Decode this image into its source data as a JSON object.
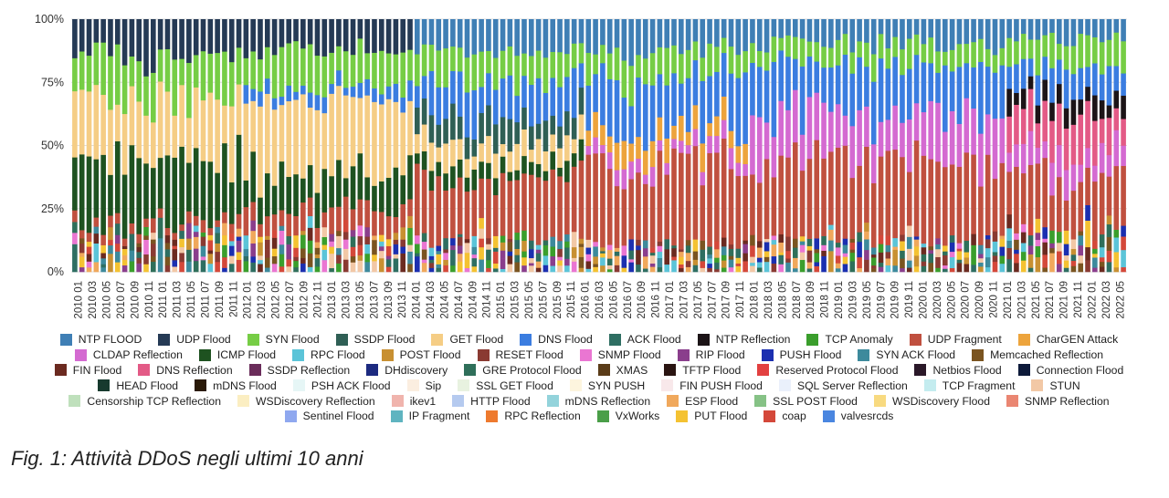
{
  "caption": "Fig. 1: Attività DDoS negli ultimi 10 anni",
  "chart_data": {
    "type": "bar",
    "stacked": true,
    "normalized_percent": true,
    "ylim": [
      0,
      100
    ],
    "y_ticks": [
      "0%",
      "25%",
      "50%",
      "75%",
      "100%"
    ],
    "grid": true,
    "legend_position": "bottom",
    "x_tick_labels": [
      "2010 01",
      "2010 03",
      "2010 05",
      "2010 07",
      "2010 09",
      "2010 11",
      "2011 01",
      "2011 03",
      "2011 05",
      "2011 07",
      "2011 09",
      "2011 11",
      "2012 01",
      "2012 03",
      "2012 05",
      "2012 07",
      "2012 09",
      "2012 11",
      "2013 01",
      "2013 03",
      "2013 05",
      "2013 07",
      "2013 09",
      "2013 11",
      "2014 01",
      "2014 03",
      "2014 05",
      "2014 07",
      "2014 09",
      "2014 11",
      "2015 01",
      "2015 03",
      "2015 05",
      "2015 07",
      "2015 09",
      "2015 11",
      "2016 01",
      "2016 03",
      "2016 05",
      "2016 07",
      "2016 09",
      "2016 11",
      "2017 01",
      "2017 03",
      "2017 05",
      "2017 07",
      "2017 09",
      "2017 11",
      "2018 01",
      "2018 03",
      "2018 05",
      "2018 07",
      "2018 09",
      "2018 11",
      "2019 01",
      "2019 03",
      "2019 05",
      "2019 07",
      "2019 09",
      "2019 11",
      "2020 01",
      "2020 03",
      "2020 05",
      "2020 07",
      "2020 09",
      "2020 11",
      "2021 01",
      "2021 03",
      "2021 05",
      "2021 07",
      "2021 09",
      "2021 11",
      "2022 01",
      "2022 03",
      "2022 05"
    ],
    "legend": [
      {
        "name": "NTP FLOOD",
        "color": "#3f7fb5"
      },
      {
        "name": "UDP Flood",
        "color": "#253a55"
      },
      {
        "name": "SYN Flood",
        "color": "#76cd45"
      },
      {
        "name": "SSDP Flood",
        "color": "#2f5f55"
      },
      {
        "name": "GET Flood",
        "color": "#f5cd85"
      },
      {
        "name": "DNS Flood",
        "color": "#3b7de0"
      },
      {
        "name": "ACK Flood",
        "color": "#2e6e62"
      },
      {
        "name": "NTP Reflection",
        "color": "#1c1417"
      },
      {
        "name": "TCP Anomaly",
        "color": "#3a9e2c"
      },
      {
        "name": "UDP Fragment",
        "color": "#c0503f"
      },
      {
        "name": "CharGEN Attack",
        "color": "#eda43c"
      },
      {
        "name": "CLDAP Reflection",
        "color": "#d46ad1"
      },
      {
        "name": "ICMP Flood",
        "color": "#1e5220"
      },
      {
        "name": "RPC Flood",
        "color": "#5bc4d8"
      },
      {
        "name": "POST Flood",
        "color": "#c89032"
      },
      {
        "name": "RESET Flood",
        "color": "#8a3a32"
      },
      {
        "name": "SNMP Flood",
        "color": "#ea76d2"
      },
      {
        "name": "RIP Flood",
        "color": "#8a3e8c"
      },
      {
        "name": "PUSH Flood",
        "color": "#1b2fb0"
      },
      {
        "name": "SYN ACK Flood",
        "color": "#3d8a9c"
      },
      {
        "name": "Memcached Reflection",
        "color": "#7a5420"
      },
      {
        "name": "FIN Flood",
        "color": "#6b2a20"
      },
      {
        "name": "DNS Reflection",
        "color": "#e35a86"
      },
      {
        "name": "SSDP Reflection",
        "color": "#6a2c5a"
      },
      {
        "name": "DHdiscovery",
        "color": "#1c2a80"
      },
      {
        "name": "GRE Protocol Flood",
        "color": "#2f6f5a"
      },
      {
        "name": "XMAS",
        "color": "#5a3c18"
      },
      {
        "name": "TFTP Flood",
        "color": "#2a1512"
      },
      {
        "name": "Reserved Protocol Flood",
        "color": "#e24040"
      },
      {
        "name": "Netbios Flood",
        "color": "#2a1828"
      },
      {
        "name": "Connection Flood",
        "color": "#0d1a3a"
      },
      {
        "name": "HEAD Flood",
        "color": "#173a2e"
      },
      {
        "name": "mDNS Flood",
        "color": "#2a1a08"
      },
      {
        "name": "PSH ACK Flood",
        "color": "#e6f6f6"
      },
      {
        "name": "Sip",
        "color": "#fbeee0"
      },
      {
        "name": "SSL GET Flood",
        "color": "#e8f2e0"
      },
      {
        "name": "SYN PUSH",
        "color": "#fdf5de"
      },
      {
        "name": "FIN PUSH Flood",
        "color": "#f8e8ea"
      },
      {
        "name": "SQL Server Reflection",
        "color": "#eaf0fb"
      },
      {
        "name": "TCP Fragment",
        "color": "#c4ecef"
      },
      {
        "name": "STUN",
        "color": "#f2c8a6"
      },
      {
        "name": "Censorship TCP Reflection",
        "color": "#bfe0bc"
      },
      {
        "name": "WSDiscovery Reflection",
        "color": "#fbeec2"
      },
      {
        "name": "ikev1",
        "color": "#f0b4ad"
      },
      {
        "name": "HTTP Flood",
        "color": "#b5caef"
      },
      {
        "name": "mDNS Reflection",
        "color": "#93d3db"
      },
      {
        "name": "ESP Flood",
        "color": "#f0a85c"
      },
      {
        "name": "SSL POST Flood",
        "color": "#86c286"
      },
      {
        "name": "WSDiscovery Flood",
        "color": "#f8da80"
      },
      {
        "name": "SNMP Reflection",
        "color": "#ea8672"
      },
      {
        "name": "Sentinel Flood",
        "color": "#8fa8ef"
      },
      {
        "name": "IP Fragment",
        "color": "#5fb4c0"
      },
      {
        "name": "RPC Reflection",
        "color": "#ee7a2e"
      },
      {
        "name": "VxWorks",
        "color": "#4a9e48"
      },
      {
        "name": "PUT Flood",
        "color": "#f4c232"
      },
      {
        "name": "coap",
        "color": "#d4483a"
      },
      {
        "name": "valvesrcds",
        "color": "#4a86e0"
      }
    ],
    "shares_note_periods": [
      {
        "from": "2010 01",
        "to": "2011 12",
        "UDP Flood": 15,
        "SYN Flood": 18,
        "GET Flood": 22,
        "ICMP Flood": 25,
        "UDP Fragment": 4,
        "other": 16
      },
      {
        "from": "2012 01",
        "to": "2013 12",
        "UDP Flood": 12,
        "SYN Flood": 15,
        "GET Flood": 28,
        "ICMP Flood": 14,
        "DNS Flood": 5,
        "UDP Fragment": 8,
        "other": 18
      },
      {
        "from": "2014 01",
        "to": "2015 12",
        "NTP FLOOD": 14,
        "SYN Flood": 12,
        "GET Flood": 8,
        "DNS Flood": 14,
        "SSDP Flood": 10,
        "UDP Fragment": 22,
        "ICMP Flood": 6,
        "other": 14
      },
      {
        "from": "2016 01",
        "to": "2017 12",
        "NTP FLOOD": 12,
        "SYN Flood": 10,
        "DNS Flood": 20,
        "UDP Fragment": 32,
        "CharGEN Attack": 8,
        "CLDAP Reflection": 6,
        "other": 12
      },
      {
        "from": "2018 01",
        "to": "2020 12",
        "NTP FLOOD": 10,
        "SYN Flood": 8,
        "DNS Flood": 20,
        "UDP Fragment": 30,
        "CLDAP Reflection": 18,
        "other": 14
      },
      {
        "from": "2021 01",
        "to": "2022 05",
        "NTP FLOOD": 8,
        "SYN Flood": 10,
        "DNS Flood": 12,
        "UDP Fragment": 20,
        "CLDAP Reflection": 10,
        "DNS Reflection": 14,
        "NTP Reflection": 8,
        "other": 18
      }
    ]
  }
}
